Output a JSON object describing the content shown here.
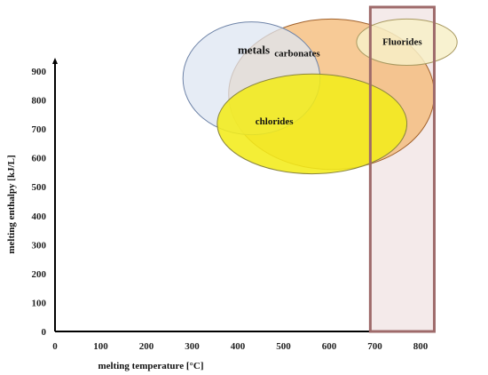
{
  "chart_data": {
    "type": "scatter",
    "title": "",
    "xlabel": "melting temperature [°C]",
    "ylabel": "melting enthalpy [kJ/L]",
    "xlim": [
      0,
      800
    ],
    "ylim": [
      0,
      900
    ],
    "xticks": [
      "0",
      "100",
      "200",
      "300",
      "400",
      "500",
      "600",
      "700",
      "800"
    ],
    "yticks": [
      "0",
      "100",
      "200",
      "300",
      "400",
      "500",
      "600",
      "700",
      "800",
      "900"
    ],
    "grid": false,
    "regions": [
      {
        "name": "carbonates",
        "x_range": [
          380,
          830
        ],
        "y_range": [
          560,
          1080
        ],
        "fill": "#f3b36a",
        "stroke": "#a0602a",
        "opacity": 0.7
      },
      {
        "name": "metals",
        "x_range": [
          280,
          580
        ],
        "y_range": [
          680,
          1070
        ],
        "fill": "#dde6f2",
        "stroke": "#6f84a8",
        "opacity": 0.75
      },
      {
        "name": "chlorides",
        "x_range": [
          355,
          770
        ],
        "y_range": [
          545,
          890
        ],
        "fill": "#f2ec1a",
        "stroke": "#8a8540",
        "opacity": 0.88
      },
      {
        "name": "Fluorides",
        "x_range": [
          660,
          880
        ],
        "y_range": [
          920,
          1080
        ],
        "fill": "#f7f0c8",
        "stroke": "#a89960",
        "opacity": 0.85
      }
    ],
    "highlight_band": {
      "x_range": [
        690,
        830
      ],
      "fill": "#eddcdc",
      "stroke": "#9e6a6a",
      "opacity": 0.6
    }
  }
}
